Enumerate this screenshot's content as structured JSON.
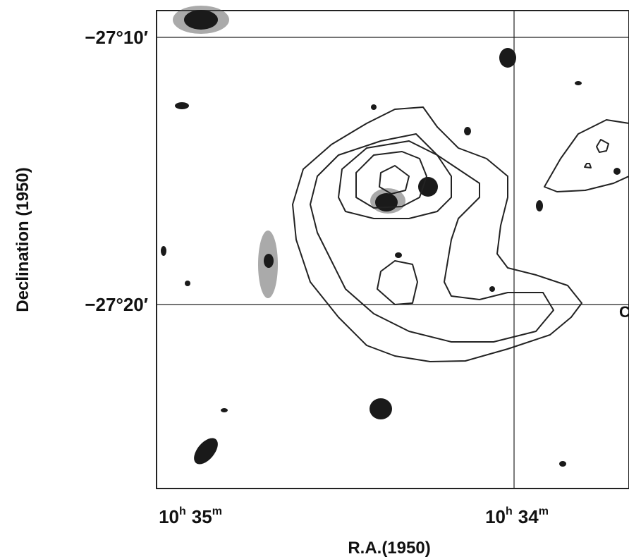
{
  "figure": {
    "y_axis_label": "Declination (1950)",
    "x_axis_label": "R.A.(1950)",
    "y_ticks": [
      "−27°10′",
      "−27°20′"
    ],
    "x_ticks": [
      {
        "hours": "10",
        "h": "h",
        "minutes": "35",
        "m": "m"
      },
      {
        "hours": "10",
        "h": "h",
        "minutes": "34",
        "m": "m"
      }
    ],
    "edge_label": "C"
  }
}
